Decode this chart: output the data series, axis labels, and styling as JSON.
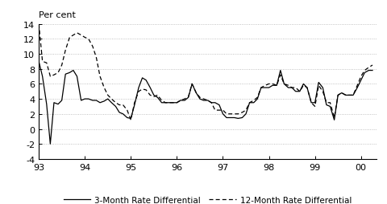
{
  "ylabel_above": "Per cent",
  "xlim": [
    1993.0,
    2000.33
  ],
  "ylim": [
    -4,
    14
  ],
  "yticks": [
    -4,
    -2,
    0,
    2,
    4,
    6,
    8,
    10,
    12,
    14
  ],
  "xticks": [
    1993,
    1994,
    1995,
    1996,
    1997,
    1998,
    1999,
    2000
  ],
  "xticklabels": [
    "93",
    "94",
    "95",
    "96",
    "97",
    "98",
    "99",
    "00"
  ],
  "legend_solid": "3-Month Rate Differential",
  "legend_dashed": "12-Month Rate Differential",
  "background_color": "#ffffff",
  "line_color": "#000000",
  "grid_color": "#b0b0b0",
  "series_3m": [
    [
      1993.0,
      9.0
    ],
    [
      1993.08,
      7.0
    ],
    [
      1993.17,
      3.3
    ],
    [
      1993.25,
      -2.0
    ],
    [
      1993.33,
      3.5
    ],
    [
      1993.42,
      3.3
    ],
    [
      1993.5,
      3.8
    ],
    [
      1993.58,
      7.3
    ],
    [
      1993.67,
      7.5
    ],
    [
      1993.75,
      7.8
    ],
    [
      1993.83,
      7.0
    ],
    [
      1993.92,
      3.8
    ],
    [
      1994.0,
      4.0
    ],
    [
      1994.08,
      4.0
    ],
    [
      1994.17,
      3.8
    ],
    [
      1994.25,
      3.8
    ],
    [
      1994.33,
      3.5
    ],
    [
      1994.42,
      3.7
    ],
    [
      1994.5,
      4.0
    ],
    [
      1994.58,
      3.5
    ],
    [
      1994.67,
      3.0
    ],
    [
      1994.75,
      2.2
    ],
    [
      1994.83,
      2.0
    ],
    [
      1994.92,
      1.5
    ],
    [
      1995.0,
      1.4
    ],
    [
      1995.08,
      3.2
    ],
    [
      1995.17,
      5.5
    ],
    [
      1995.25,
      6.8
    ],
    [
      1995.33,
      6.5
    ],
    [
      1995.42,
      5.5
    ],
    [
      1995.5,
      4.5
    ],
    [
      1995.58,
      4.2
    ],
    [
      1995.67,
      3.5
    ],
    [
      1995.75,
      3.5
    ],
    [
      1995.83,
      3.5
    ],
    [
      1995.92,
      3.5
    ],
    [
      1996.0,
      3.5
    ],
    [
      1996.08,
      3.8
    ],
    [
      1996.17,
      3.8
    ],
    [
      1996.25,
      4.2
    ],
    [
      1996.33,
      6.0
    ],
    [
      1996.42,
      4.8
    ],
    [
      1996.5,
      4.0
    ],
    [
      1996.58,
      3.8
    ],
    [
      1996.67,
      3.8
    ],
    [
      1996.75,
      3.5
    ],
    [
      1996.83,
      3.5
    ],
    [
      1996.92,
      3.2
    ],
    [
      1997.0,
      2.0
    ],
    [
      1997.08,
      1.5
    ],
    [
      1997.17,
      1.5
    ],
    [
      1997.25,
      1.5
    ],
    [
      1997.33,
      1.4
    ],
    [
      1997.42,
      1.5
    ],
    [
      1997.5,
      2.0
    ],
    [
      1997.58,
      3.5
    ],
    [
      1997.67,
      3.5
    ],
    [
      1997.75,
      4.0
    ],
    [
      1997.83,
      5.5
    ],
    [
      1997.92,
      5.5
    ],
    [
      1998.0,
      5.5
    ],
    [
      1998.08,
      5.8
    ],
    [
      1998.17,
      5.8
    ],
    [
      1998.25,
      7.8
    ],
    [
      1998.33,
      6.0
    ],
    [
      1998.42,
      5.5
    ],
    [
      1998.5,
      5.5
    ],
    [
      1998.58,
      5.0
    ],
    [
      1998.67,
      5.0
    ],
    [
      1998.75,
      6.0
    ],
    [
      1998.83,
      5.5
    ],
    [
      1998.92,
      3.5
    ],
    [
      1999.0,
      3.5
    ],
    [
      1999.08,
      6.2
    ],
    [
      1999.17,
      5.5
    ],
    [
      1999.25,
      3.2
    ],
    [
      1999.33,
      3.0
    ],
    [
      1999.42,
      1.2
    ],
    [
      1999.5,
      4.5
    ],
    [
      1999.58,
      4.8
    ],
    [
      1999.67,
      4.5
    ],
    [
      1999.75,
      4.5
    ],
    [
      1999.83,
      4.5
    ],
    [
      1999.92,
      5.5
    ],
    [
      2000.0,
      6.5
    ],
    [
      2000.08,
      7.5
    ],
    [
      2000.17,
      7.8
    ],
    [
      2000.25,
      7.8
    ]
  ],
  "series_12m": [
    [
      1993.0,
      14.0
    ],
    [
      1993.08,
      9.0
    ],
    [
      1993.17,
      8.8
    ],
    [
      1993.25,
      7.0
    ],
    [
      1993.33,
      7.2
    ],
    [
      1993.42,
      7.5
    ],
    [
      1993.5,
      8.5
    ],
    [
      1993.58,
      10.5
    ],
    [
      1993.67,
      12.2
    ],
    [
      1993.75,
      12.5
    ],
    [
      1993.83,
      12.8
    ],
    [
      1993.92,
      12.5
    ],
    [
      1994.0,
      12.2
    ],
    [
      1994.08,
      12.0
    ],
    [
      1994.17,
      11.0
    ],
    [
      1994.25,
      9.5
    ],
    [
      1994.33,
      7.0
    ],
    [
      1994.42,
      5.5
    ],
    [
      1994.5,
      4.5
    ],
    [
      1994.58,
      4.0
    ],
    [
      1994.67,
      3.5
    ],
    [
      1994.75,
      3.2
    ],
    [
      1994.83,
      3.2
    ],
    [
      1994.92,
      2.5
    ],
    [
      1995.0,
      1.2
    ],
    [
      1995.08,
      3.5
    ],
    [
      1995.17,
      5.0
    ],
    [
      1995.25,
      5.3
    ],
    [
      1995.33,
      5.2
    ],
    [
      1995.42,
      4.5
    ],
    [
      1995.5,
      4.3
    ],
    [
      1995.58,
      4.5
    ],
    [
      1995.67,
      3.8
    ],
    [
      1995.75,
      3.5
    ],
    [
      1995.83,
      3.5
    ],
    [
      1995.92,
      3.5
    ],
    [
      1996.0,
      3.5
    ],
    [
      1996.08,
      3.8
    ],
    [
      1996.17,
      4.0
    ],
    [
      1996.25,
      4.3
    ],
    [
      1996.33,
      6.0
    ],
    [
      1996.42,
      4.8
    ],
    [
      1996.5,
      4.2
    ],
    [
      1996.58,
      4.0
    ],
    [
      1996.67,
      3.8
    ],
    [
      1996.75,
      3.5
    ],
    [
      1996.83,
      2.5
    ],
    [
      1996.92,
      2.5
    ],
    [
      1997.0,
      2.5
    ],
    [
      1997.08,
      2.0
    ],
    [
      1997.17,
      2.0
    ],
    [
      1997.25,
      2.0
    ],
    [
      1997.33,
      2.0
    ],
    [
      1997.42,
      2.2
    ],
    [
      1997.5,
      2.5
    ],
    [
      1997.58,
      3.5
    ],
    [
      1997.67,
      3.8
    ],
    [
      1997.75,
      4.2
    ],
    [
      1997.83,
      5.5
    ],
    [
      1997.92,
      5.8
    ],
    [
      1998.0,
      6.0
    ],
    [
      1998.08,
      6.0
    ],
    [
      1998.17,
      5.8
    ],
    [
      1998.25,
      7.2
    ],
    [
      1998.33,
      6.0
    ],
    [
      1998.42,
      5.8
    ],
    [
      1998.5,
      5.5
    ],
    [
      1998.58,
      5.5
    ],
    [
      1998.67,
      5.0
    ],
    [
      1998.75,
      5.8
    ],
    [
      1998.83,
      5.5
    ],
    [
      1998.92,
      3.5
    ],
    [
      1999.0,
      3.0
    ],
    [
      1999.08,
      5.8
    ],
    [
      1999.17,
      5.0
    ],
    [
      1999.25,
      3.5
    ],
    [
      1999.33,
      3.5
    ],
    [
      1999.42,
      1.5
    ],
    [
      1999.5,
      4.5
    ],
    [
      1999.58,
      4.8
    ],
    [
      1999.67,
      4.5
    ],
    [
      1999.75,
      4.5
    ],
    [
      1999.83,
      4.5
    ],
    [
      1999.92,
      5.8
    ],
    [
      2000.0,
      7.0
    ],
    [
      2000.08,
      7.8
    ],
    [
      2000.17,
      8.2
    ],
    [
      2000.25,
      8.5
    ]
  ]
}
